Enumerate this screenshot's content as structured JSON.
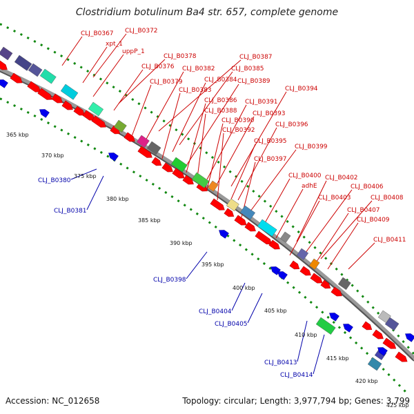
{
  "title": "Clostridium botulinum Ba4 str. 657, complete genome",
  "footer": {
    "accession": "Accession: NC_012658",
    "summary": "Topology: circular; Length: 3,977,794 bp; Genes: 3,799"
  },
  "colors": {
    "cds_forward": "#ff0000",
    "cds_reverse": "#0000ee",
    "backbone": "#777777",
    "dotted_ring": "#118811",
    "label_forward": "#cc0000",
    "label_reverse": "#0000aa"
  },
  "ticks": [
    "365 kbp",
    "370 kbp",
    "375 kbp",
    "380 kbp",
    "385 kbp",
    "390 kbp",
    "395 kbp",
    "400 kbp",
    "405 kbp",
    "410 kbp",
    "415 kbp",
    "420 kbp",
    "425 kbp"
  ],
  "forward_labels": [
    "CLJ_B0367",
    "CLJ_B0372",
    "xpt_1",
    "uppP_1",
    "CLJ_B0378",
    "CLJ_B0376",
    "CLJ_B0387",
    "CLJ_B0382",
    "CLJ_B0385",
    "CLJ_B0379",
    "CLJ_B0384",
    "CLJ_B0389",
    "CLJ_B0383",
    "CLJ_B0386",
    "CLJ_B0391",
    "CLJ_B0394",
    "CLJ_B0388",
    "CLJ_B0393",
    "CLJ_B0390",
    "CLJ_B0396",
    "CLJ_B0392",
    "CLJ_B0395",
    "CLJ_B0399",
    "CLJ_B0397",
    "CLJ_B0400",
    "CLJ_B0402",
    "adhE",
    "CLJ_B0406",
    "CLJ_B0403",
    "CLJ_B0408",
    "CLJ_B0407",
    "CLJ_B0409",
    "CLJ_B0411"
  ],
  "reverse_labels": [
    "CLJ_B0380",
    "CLJ_B0381",
    "CLJ_B0398",
    "CLJ_B0404",
    "CLJ_B0405",
    "CLJ_B0413",
    "CLJ_B0414"
  ]
}
